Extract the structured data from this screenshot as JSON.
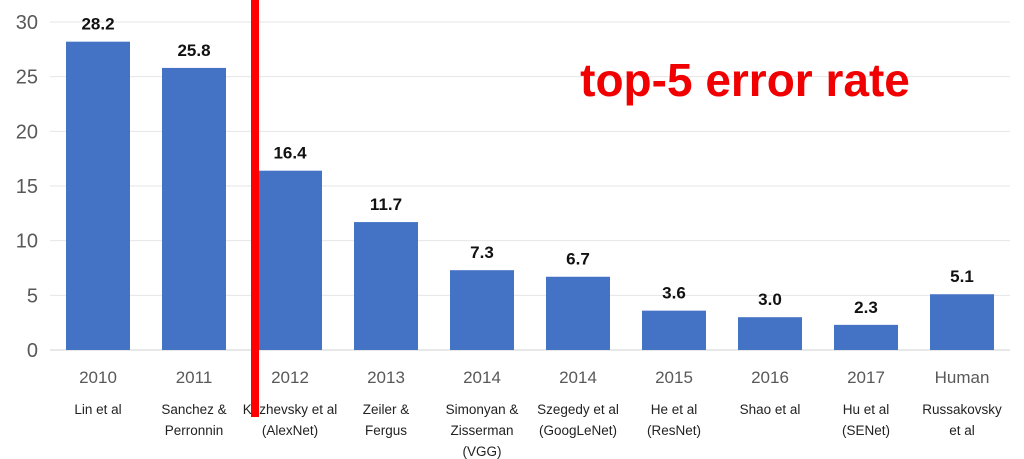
{
  "chart_data": {
    "type": "bar",
    "title": "top-5 error rate",
    "xlabel": "",
    "ylabel": "",
    "ylim": [
      0,
      30
    ],
    "yticks": [
      0,
      5,
      10,
      15,
      20,
      25,
      30
    ],
    "grid": true,
    "categories": [
      {
        "year": "2010",
        "name": [
          "Lin et al"
        ]
      },
      {
        "year": "2011",
        "name": [
          "Sanchez &",
          "Perronnin"
        ]
      },
      {
        "year": "2012",
        "name": [
          "Krizhevsky et al",
          "(AlexNet)"
        ]
      },
      {
        "year": "2013",
        "name": [
          "Zeiler &",
          "Fergus"
        ]
      },
      {
        "year": "2014",
        "name": [
          "Simonyan &",
          "Zisserman",
          "(VGG)"
        ]
      },
      {
        "year": "2014",
        "name": [
          "Szegedy et al",
          "(GoogLeNet)"
        ]
      },
      {
        "year": "2015",
        "name": [
          "He et al",
          "(ResNet)"
        ]
      },
      {
        "year": "2016",
        "name": [
          "Shao et al"
        ]
      },
      {
        "year": "2017",
        "name": [
          "Hu et al",
          "(SENet)"
        ]
      },
      {
        "year": "Human",
        "name": [
          "Russakovsky",
          "et al"
        ]
      }
    ],
    "values": [
      28.2,
      25.8,
      16.4,
      11.7,
      7.3,
      6.7,
      3.6,
      3.0,
      2.3,
      5.1
    ],
    "value_labels": [
      "28.2",
      "25.8",
      "16.4",
      "11.7",
      "7.3",
      "6.7",
      "3.6",
      "3.0",
      "2.3",
      "5.1"
    ],
    "bar_color": "#4472c4",
    "divider": {
      "between_categories": [
        1,
        2
      ],
      "color": "#ff0000"
    }
  }
}
